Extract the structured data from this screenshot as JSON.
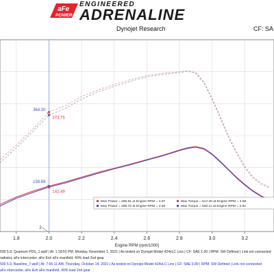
{
  "header": {
    "brand_top": "aFe",
    "brand_bottom": "POWER",
    "engineered": "ENGINEERED",
    "adrenaline": "ADRENALINE",
    "research": "Dynojet Research",
    "cf": "CF: SA"
  },
  "colors": {
    "red": "#e03a3a",
    "blue": "#3f4fd0",
    "power_red": "#e0a0a0",
    "power_gray": "#a8a8a8",
    "torque_gray": "#888888"
  },
  "chart_data": {
    "type": "line",
    "xlabel": "Engine RPM (rpm/1000)",
    "x_ticks": [
      "1.8",
      "2.0",
      "2.2",
      "2.4",
      "2.6",
      "2.8",
      "3.0",
      "3.2"
    ],
    "xlim": [
      1.7,
      3.38
    ],
    "ylim": [
      0,
      600
    ],
    "grid": true,
    "cursor": {
      "x": 2.0,
      "label": "2"
    },
    "cursor_labels": [
      {
        "text": "364.30",
        "x": 2.0,
        "y": 364.3,
        "color": "blue",
        "side": "left"
      },
      {
        "text": "373.75",
        "x": 2.0,
        "y": 373.75,
        "color": "red",
        "side": "right"
      },
      {
        "text": "138.88",
        "x": 2.0,
        "y": 138.88,
        "color": "blue",
        "side": "left"
      },
      {
        "text": "142.49",
        "x": 2.0,
        "y": 142.49,
        "color": "red",
        "side": "right"
      }
    ],
    "series": [
      {
        "color": "power_red",
        "dash": true,
        "x": [
          1.7,
          1.8,
          1.9,
          2.0,
          2.1,
          2.2,
          2.3,
          2.4,
          2.5,
          2.6,
          2.7,
          2.8,
          2.85,
          2.9,
          2.95,
          3.0,
          3.05,
          3.1,
          3.15,
          3.2,
          3.25,
          3.3,
          3.35
        ],
        "y": [
          225,
          270,
          320,
          374,
          393,
          422,
          443,
          460,
          475,
          488,
          495,
          500,
          503,
          498,
          468,
          418,
          360,
          300,
          250,
          205,
          172,
          152,
          140
        ]
      },
      {
        "color": "power_gray",
        "dash": true,
        "x": [
          1.7,
          1.8,
          1.9,
          2.0,
          2.1,
          2.2,
          2.3,
          2.4,
          2.5,
          2.6,
          2.7,
          2.8,
          2.85,
          2.9,
          2.95,
          3.0,
          3.05,
          3.1,
          3.15,
          3.2,
          3.25,
          3.3,
          3.35
        ],
        "y": [
          215,
          262,
          312,
          364,
          385,
          414,
          437,
          454,
          470,
          484,
          492,
          497,
          501,
          495,
          465,
          414,
          355,
          296,
          246,
          200,
          168,
          148,
          136
        ]
      },
      {
        "color": "red",
        "dash": false,
        "x": [
          1.7,
          1.8,
          1.9,
          2.0,
          2.1,
          2.2,
          2.3,
          2.4,
          2.5,
          2.6,
          2.7,
          2.8,
          2.85,
          2.9,
          2.95,
          3.0,
          3.05,
          3.1,
          3.15,
          3.2,
          3.25,
          3.3,
          3.35
        ],
        "y": [
          85,
          108,
          126,
          142,
          155,
          170,
          185,
          198,
          211,
          225,
          239,
          255,
          262,
          266,
          260,
          243,
          220,
          195,
          170,
          148,
          128,
          112,
          100
        ]
      },
      {
        "color": "blue",
        "dash": false,
        "x": [
          1.7,
          1.8,
          1.9,
          2.0,
          2.1,
          2.2,
          2.3,
          2.4,
          2.5,
          2.6,
          2.7,
          2.8,
          2.85,
          2.9,
          2.95,
          3.0,
          3.05,
          3.1,
          3.15,
          3.2,
          3.25,
          3.3,
          3.35
        ],
        "y": [
          80,
          104,
          122,
          139,
          152,
          167,
          182,
          196,
          209,
          223,
          237,
          253,
          260,
          264,
          258,
          241,
          218,
          193,
          168,
          146,
          126,
          110,
          98
        ]
      }
    ],
    "legend": {
      "position": "bottom-right",
      "entries": [
        {
          "color": "red",
          "text": "Max Power = 286.81 at Engine RPM = 2.97"
        },
        {
          "color": "red",
          "text": "Max Torque = 517.40 at Engine RPM = 2.88"
        },
        {
          "color": "blue",
          "text": "Max Power = 288.76 at Engine RPM = 2.92"
        },
        {
          "color": "blue",
          "text": "Max Torque = 520.11 at Engine RPM = 2.92"
        }
      ]
    }
  },
  "footer": {
    "lines": [
      "500 5.9, Quantum PDS_1.wp8 | At: 1:18:52 PM, Monday, November 1, 2021 | As tested on Dynojet Model 424xLC Linx | CF: SAE 1.00 | RPM: SW Defined | Link not connected",
      "radiator, aFe intercooler, aFe Exh aFe manifold, 40% load 2nd gear",
      "500 5.9, Baseline_7.wp8 | At: 7:55:11 AM, Thursday, October 14, 2021 | As tested on Dynojet Model 424xLC Linx | CF: SAE 0.99 | RPM: SW Defined | Link not connected",
      "aFe intercooler, aFe Exh aFe manifold, 40% load 2nd gear"
    ]
  }
}
